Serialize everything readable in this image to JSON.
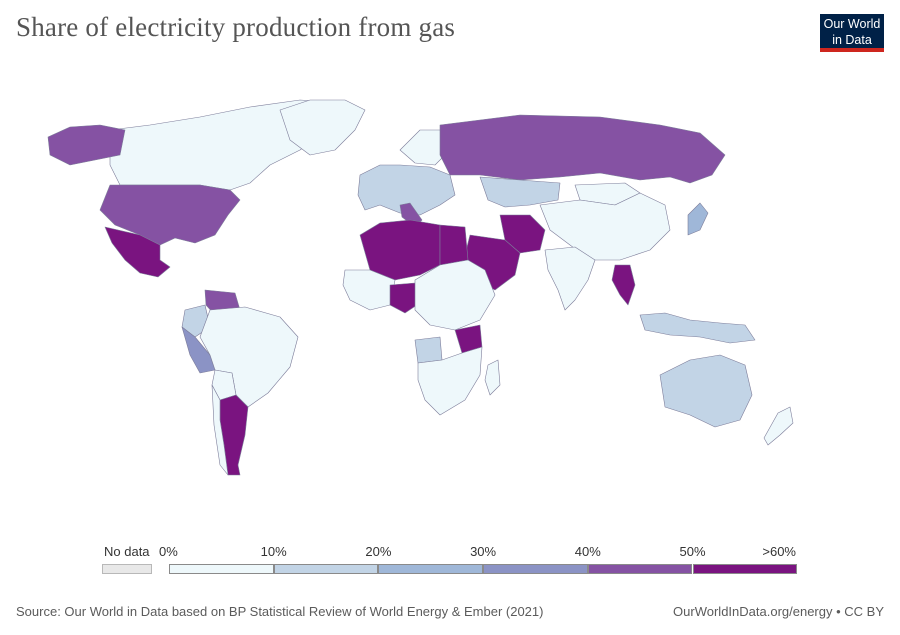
{
  "title": "Share of electricity production from gas",
  "logo": {
    "line1": "Our World",
    "line2": "in Data"
  },
  "legend": {
    "no_data_label": "No data",
    "bins": [
      {
        "label": "0%",
        "color": "#eef8fb"
      },
      {
        "label": "10%",
        "color": "#c2d4e6"
      },
      {
        "label": "20%",
        "color": "#9fb7d8"
      },
      {
        "label": "30%",
        "color": "#8b93c5"
      },
      {
        "label": "40%",
        "color": "#8552a3"
      },
      {
        "label": "50%",
        "color": "#7a1480"
      }
    ],
    "end_label": ">60%"
  },
  "source": "Source: Our World in Data based on BP Statistical Review of World Energy & Ember (2021)",
  "license": "OurWorldInData.org/energy • CC BY",
  "regions": [
    {
      "id": "canada",
      "bin": 0
    },
    {
      "id": "alaska",
      "bin": 4
    },
    {
      "id": "usa",
      "bin": 4
    },
    {
      "id": "mexico",
      "bin": 5
    },
    {
      "id": "venezuela",
      "bin": 4
    },
    {
      "id": "colombia",
      "bin": 1
    },
    {
      "id": "peru",
      "bin": 3
    },
    {
      "id": "brazil",
      "bin": 0
    },
    {
      "id": "bolivia",
      "bin": 0
    },
    {
      "id": "argentina",
      "bin": 5
    },
    {
      "id": "chile",
      "bin": 0
    },
    {
      "id": "greenland",
      "bin": 0
    },
    {
      "id": "russia",
      "bin": 4
    },
    {
      "id": "kazakhstan",
      "bin": 1
    },
    {
      "id": "china",
      "bin": 0
    },
    {
      "id": "mongolia",
      "bin": 0
    },
    {
      "id": "india",
      "bin": 0
    },
    {
      "id": "iran",
      "bin": 5
    },
    {
      "id": "saudi",
      "bin": 5
    },
    {
      "id": "north-africa",
      "bin": 5
    },
    {
      "id": "egypt",
      "bin": 5
    },
    {
      "id": "west-africa",
      "bin": 0
    },
    {
      "id": "nigeria",
      "bin": 5
    },
    {
      "id": "central-africa",
      "bin": 0
    },
    {
      "id": "tanzania",
      "bin": 5
    },
    {
      "id": "southern-africa",
      "bin": 0
    },
    {
      "id": "angola",
      "bin": 1
    },
    {
      "id": "madagascar",
      "bin": 0
    },
    {
      "id": "europe",
      "bin": 1
    },
    {
      "id": "scandinavia",
      "bin": 0
    },
    {
      "id": "italy",
      "bin": 4
    },
    {
      "id": "thailand",
      "bin": 5
    },
    {
      "id": "japan",
      "bin": 2
    },
    {
      "id": "indonesia",
      "bin": 1
    },
    {
      "id": "australia",
      "bin": 1
    },
    {
      "id": "new-zealand",
      "bin": 0
    }
  ]
}
